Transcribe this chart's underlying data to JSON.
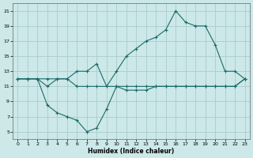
{
  "xlabel": "Humidex (Indice chaleur)",
  "bg_color": "#cce8e8",
  "grid_color": "#aacccc",
  "line_color": "#1a6b6b",
  "xlim": [
    -0.5,
    23.5
  ],
  "ylim": [
    4.0,
    22.0
  ],
  "yticks": [
    5,
    7,
    9,
    11,
    13,
    15,
    17,
    19,
    21
  ],
  "xticks": [
    0,
    1,
    2,
    3,
    4,
    5,
    6,
    7,
    8,
    9,
    10,
    11,
    12,
    13,
    14,
    15,
    16,
    17,
    18,
    19,
    20,
    21,
    22,
    23
  ],
  "line_flat_x": [
    0,
    1,
    2,
    3,
    4,
    5,
    6,
    7,
    8,
    9,
    10,
    11,
    12,
    13,
    14,
    15,
    16,
    17,
    18,
    19,
    20,
    21,
    22,
    23
  ],
  "line_flat_y": [
    12,
    12,
    12,
    11,
    12,
    12,
    11,
    11,
    11,
    11,
    11,
    11,
    11,
    11,
    11,
    11,
    11,
    11,
    11,
    11,
    11,
    11,
    11,
    12
  ],
  "line_upper_x": [
    0,
    1,
    2,
    3,
    4,
    5,
    6,
    7,
    8,
    9,
    10,
    11,
    12,
    13,
    14,
    15,
    16,
    17,
    18,
    19,
    20,
    21,
    22,
    23
  ],
  "line_upper_y": [
    12,
    12,
    12,
    12,
    12,
    12,
    13,
    13,
    14,
    11,
    13,
    15,
    16,
    17,
    17.5,
    18.5,
    21,
    19.5,
    19,
    19,
    16.5,
    13,
    13,
    12
  ],
  "line_lower_x": [
    0,
    1,
    2,
    3,
    4,
    5,
    6,
    7,
    8,
    9,
    10,
    11,
    12,
    13,
    14,
    15,
    16,
    17,
    18,
    19,
    20,
    21,
    22,
    23
  ],
  "line_lower_y": [
    12,
    12,
    12,
    8.5,
    7.5,
    7,
    6.5,
    5,
    5.5,
    8,
    11,
    10.5,
    10.5,
    10.5,
    11,
    11,
    11,
    11,
    11,
    11,
    11,
    11,
    11,
    12
  ]
}
